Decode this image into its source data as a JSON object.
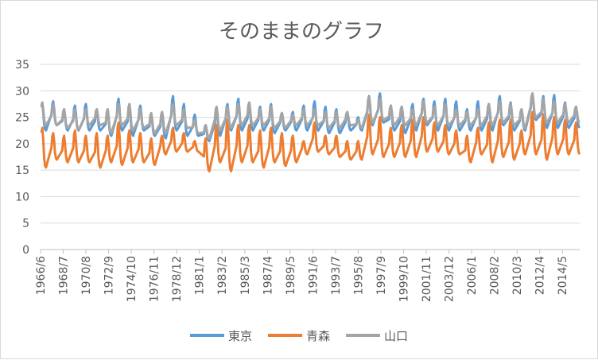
{
  "chart_data": {
    "type": "line",
    "title": "そのままのグラフ",
    "xlabel": "",
    "ylabel": "",
    "ylim": [
      0,
      35
    ],
    "yticks": [
      0,
      5,
      10,
      15,
      20,
      25,
      30,
      35
    ],
    "grid": true,
    "legend_position": "bottom",
    "x_start": "1966/6",
    "x_end": "2015/12",
    "x_tick_labels": [
      "1966/6",
      "1968/7",
      "1970/8",
      "1972/9",
      "1974/10",
      "1976/11",
      "1978/12",
      "1981/1",
      "1983/2",
      "1985/3",
      "1987/4",
      "1989/5",
      "1991/6",
      "1993/7",
      "1995/8",
      "1997/9",
      "1999/10",
      "2001/11",
      "2003/12",
      "2006/1",
      "2008/2",
      "2010/3",
      "2012/4",
      "2014/5"
    ],
    "x_tick_years": [
      1966.42,
      1968.5,
      1970.58,
      1972.67,
      1974.75,
      1976.83,
      1978.92,
      1981.0,
      1983.08,
      1985.17,
      1987.25,
      1989.33,
      1991.42,
      1993.5,
      1995.58,
      1997.67,
      1999.75,
      2001.83,
      2003.92,
      2006.0,
      2008.08,
      2010.17,
      2012.25,
      2014.33
    ],
    "series": [
      {
        "name": "東京",
        "color": "#5b9bd5",
        "summer_peak": [
          27.5,
          28,
          26.5,
          27.2,
          27.5,
          26.5,
          26.5,
          28.5,
          27.5,
          27.2,
          25.5,
          26,
          29,
          27.5,
          25.5,
          23.5,
          26.5,
          27.5,
          28.5,
          27.5,
          27,
          27.5,
          25.8,
          26,
          27.2,
          28,
          27,
          26.5,
          26,
          25,
          29,
          29.5,
          27.2,
          27,
          27.5,
          28.5,
          28,
          28.5,
          28,
          26.5,
          28,
          27.5,
          29,
          27.8,
          26.5,
          29.5,
          29,
          29.2,
          27.8,
          27
        ],
        "low": [
          22.5,
          23.5,
          22.5,
          22.5,
          22.5,
          22.5,
          21.5,
          22.5,
          21.5,
          22.5,
          21.5,
          21,
          22.5,
          21.5,
          21.5,
          20.5,
          21.5,
          22.5,
          22.5,
          22.5,
          22.5,
          22,
          22.5,
          22.5,
          22.5,
          22.5,
          22,
          22,
          22.5,
          22.5,
          23.5,
          24,
          22.5,
          22,
          22.5,
          23.5,
          22.5,
          22.5,
          22.5,
          22.5,
          22.5,
          22.5,
          23.5,
          22.5,
          22.5,
          24.5,
          23,
          23,
          23,
          23
        ]
      },
      {
        "name": "青森",
        "color": "#ed7d31",
        "summer_peak": [
          23,
          22,
          21.5,
          22.5,
          21.5,
          22,
          21.5,
          24,
          22.5,
          22,
          21,
          21.5,
          23,
          22,
          20.5,
          21,
          23.5,
          24.5,
          23.5,
          23.5,
          22.5,
          23,
          22,
          21.5,
          20.5,
          24,
          21.5,
          21.5,
          20.5,
          20.5,
          25.5,
          25,
          23,
          23.5,
          24.5,
          25,
          24,
          23.5,
          22.5,
          21.5,
          23,
          24,
          24.5,
          24.5,
          22.5,
          26,
          25.5,
          25,
          24.5,
          24
        ],
        "low": [
          15.5,
          17,
          16.5,
          16.5,
          16.5,
          15.5,
          16.5,
          16,
          16.5,
          16.5,
          16,
          18,
          18.5,
          18.5,
          18.5,
          14.8,
          16.5,
          14.8,
          16.5,
          16.5,
          15.5,
          16.5,
          15.8,
          16.5,
          18,
          18.5,
          18,
          17.5,
          17,
          17,
          18,
          17.5,
          17.5,
          17.5,
          17.5,
          18.5,
          18.5,
          18,
          18,
          16.5,
          18,
          16.5,
          17.5,
          17,
          18,
          18,
          17,
          18,
          18,
          18
        ]
      },
      {
        "name": "山口",
        "color": "#a5a5a5",
        "summer_peak": [
          27.8,
          27.5,
          26.5,
          26.5,
          26.5,
          26.5,
          26.5,
          27.5,
          27.5,
          26.5,
          25.8,
          26,
          27.5,
          26.5,
          24.5,
          23.5,
          27,
          27,
          27.5,
          27.8,
          26.5,
          27,
          25.8,
          25.5,
          26.5,
          26.5,
          26,
          26,
          26,
          24.5,
          28.8,
          28.5,
          27.2,
          27,
          26.5,
          28,
          27,
          27.5,
          26.5,
          26,
          26.5,
          27.5,
          28,
          27.5,
          26.5,
          29.5,
          28.5,
          28,
          27.5,
          27
        ],
        "low": [
          23.5,
          23.5,
          23,
          22.5,
          23.5,
          23.5,
          22,
          23.5,
          22.5,
          23,
          22,
          22,
          23.5,
          23,
          22,
          21,
          22.5,
          23,
          23.5,
          23.5,
          23.5,
          23,
          23,
          23.5,
          23.5,
          23.5,
          23,
          23,
          23.5,
          23,
          24,
          24.5,
          23.5,
          23.5,
          23.5,
          24,
          23.5,
          23.5,
          23.5,
          23.5,
          23.5,
          23.5,
          24,
          23.5,
          23,
          25,
          24,
          24,
          24,
          24
        ]
      }
    ]
  },
  "legend": {
    "items": [
      {
        "label": "東京",
        "color": "#5b9bd5"
      },
      {
        "label": "青森",
        "color": "#ed7d31"
      },
      {
        "label": "山口",
        "color": "#a5a5a5"
      }
    ]
  }
}
